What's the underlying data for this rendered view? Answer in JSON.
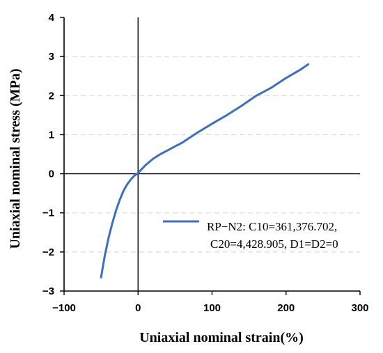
{
  "chart_data": {
    "type": "line",
    "title": "",
    "xlabel": "Uniaxial nominal strain(%)",
    "ylabel": "Uniaxial nominal stress (MPa)",
    "xlim": [
      -100,
      300
    ],
    "ylim": [
      -3,
      4
    ],
    "x_ticks": [
      -100,
      0,
      100,
      200,
      300
    ],
    "y_ticks": [
      -3,
      -2,
      -1,
      0,
      1,
      2,
      3,
      4
    ],
    "x_tick_labels": [
      "−100",
      "0",
      "100",
      "200",
      "300"
    ],
    "y_tick_labels": [
      "−3",
      "−2",
      "−1",
      "0",
      "1",
      "2",
      "3",
      "4"
    ],
    "grid": "horizontal dashed",
    "legend_position": "lower-right",
    "series": [
      {
        "name": "RP−N2: C10=361,376.702, C20=4,428.905, D1=D2=0",
        "legend_lines": [
          "RP−N2: C10=361,376.702,",
          "C20=4,428.905, D1=D2=0"
        ],
        "color": "#3a6fc4",
        "x": [
          -50,
          -45,
          -40,
          -35,
          -30,
          -25,
          -20,
          -15,
          -10,
          -5,
          0,
          10,
          20,
          30,
          40,
          60,
          80,
          100,
          120,
          140,
          160,
          180,
          200,
          220,
          230
        ],
        "y": [
          -2.65,
          -2.1,
          -1.65,
          -1.28,
          -0.95,
          -0.68,
          -0.45,
          -0.28,
          -0.15,
          -0.05,
          0.02,
          0.22,
          0.38,
          0.5,
          0.6,
          0.8,
          1.05,
          1.28,
          1.5,
          1.74,
          2.0,
          2.2,
          2.45,
          2.67,
          2.8
        ]
      }
    ]
  }
}
